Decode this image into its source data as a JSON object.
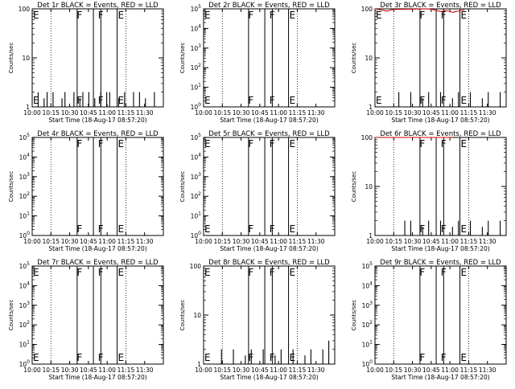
{
  "x_tick_labels": [
    "10:00",
    "10:15",
    "10:30",
    "10:45",
    "11:00",
    "11:15",
    "11:30"
  ],
  "xlabel": "Start Time (18-Aug-17 08:57:20)",
  "ylabel": "Counts/sec",
  "chart_data": [
    {
      "type": "line",
      "title": "Det 1r BLACK = Events, RED = LLD",
      "scale": "log",
      "ylim": [
        1,
        100
      ],
      "yticks": [
        "1",
        "10",
        "100"
      ],
      "annotations": [
        {
          "text": "E",
          "x": "10:00"
        },
        {
          "text": "F",
          "x": "10:35"
        },
        {
          "text": "F",
          "x": "10:52"
        },
        {
          "text": "E",
          "x": "11:08"
        }
      ],
      "series": [
        {
          "color": "#000000",
          "x": [
            10.05,
            10.1,
            10.15,
            10.2,
            10.25,
            10.3,
            10.35,
            10.4,
            10.45,
            10.5,
            10.55,
            10.6,
            10.65,
            10.7,
            10.75,
            10.8,
            10.85,
            10.9,
            10.95,
            11.0,
            11.05,
            11.1,
            11.15,
            11.2,
            11.25,
            11.3,
            11.35,
            11.4,
            11.45,
            11.5,
            11.55,
            11.6,
            11.65,
            11.7,
            11.75,
            11.8,
            11.85,
            11.9,
            11.95,
            12.0,
            12.05,
            12.1
          ],
          "y": [
            1,
            2,
            1,
            1.5,
            2,
            1,
            2,
            1,
            1,
            1.5,
            2,
            1,
            1,
            2,
            1,
            1.5,
            2,
            1,
            2,
            1,
            1.5,
            1,
            2,
            1,
            2,
            2,
            1,
            1,
            1.5,
            1,
            2,
            1,
            1,
            2,
            1,
            2,
            1,
            1.5,
            1,
            1,
            2,
            1
          ]
        }
      ]
    },
    {
      "type": "line",
      "title": "Det 2r BLACK = Events, RED = LLD",
      "scale": "log",
      "ylim": [
        1,
        100000
      ],
      "yticks": [
        "10^0",
        "10^1",
        "10^2",
        "10^3",
        "10^4",
        "10^5"
      ],
      "annotations": [
        {
          "text": "E",
          "x": "10:00"
        },
        {
          "text": "F",
          "x": "10:35"
        },
        {
          "text": "F",
          "x": "10:52"
        },
        {
          "text": "E",
          "x": "11:08"
        }
      ],
      "series": []
    },
    {
      "type": "line",
      "title": "Det 3r BLACK = Events, RED = LLD",
      "scale": "log",
      "ylim": [
        1,
        100
      ],
      "yticks": [
        "1",
        "10",
        "100"
      ],
      "annotations": [
        {
          "text": "E",
          "x": "10:00"
        },
        {
          "text": "F",
          "x": "10:35"
        },
        {
          "text": "F",
          "x": "10:52"
        },
        {
          "text": "E",
          "x": "11:08"
        }
      ],
      "series": [
        {
          "color": "#000000",
          "x": [
            10.3,
            10.4,
            10.5,
            10.6,
            10.7,
            10.8,
            10.9,
            11.0,
            11.1,
            11.2,
            11.3,
            11.4,
            11.5,
            11.6,
            11.7,
            11.8,
            11.9,
            12.0,
            12.1
          ],
          "y": [
            1,
            2,
            1,
            2,
            1,
            1.5,
            2,
            1,
            2,
            1,
            1.5,
            2,
            1,
            2,
            1,
            1.5,
            2,
            1,
            2
          ]
        },
        {
          "color": "#cc0000",
          "x": [
            10.0,
            10.1,
            10.2,
            10.3,
            10.9,
            11.0,
            11.1,
            11.2,
            11.3,
            11.4,
            11.5
          ],
          "y": [
            100,
            95,
            90,
            97,
            100,
            95,
            88,
            92,
            85,
            90,
            96
          ]
        }
      ]
    },
    {
      "type": "line",
      "title": "Det 4r BLACK = Events, RED = LLD",
      "scale": "log",
      "ylim": [
        1,
        100000
      ],
      "yticks": [
        "10^0",
        "10^1",
        "10^2",
        "10^3",
        "10^4",
        "10^5"
      ],
      "annotations": [
        {
          "text": "F",
          "x": "10:35"
        },
        {
          "text": "F",
          "x": "10:52"
        },
        {
          "text": "E",
          "x": "11:08"
        }
      ],
      "series": []
    },
    {
      "type": "line",
      "title": "Det 5r BLACK = Events, RED = LLD",
      "scale": "log",
      "ylim": [
        1,
        100000
      ],
      "yticks": [
        "10^0",
        "10^1",
        "10^2",
        "10^3",
        "10^4",
        "10^5"
      ],
      "annotations": [
        {
          "text": "E",
          "x": "10:00"
        },
        {
          "text": "F",
          "x": "10:35"
        },
        {
          "text": "F",
          "x": "10:52"
        },
        {
          "text": "E",
          "x": "11:08"
        }
      ],
      "series": []
    },
    {
      "type": "line",
      "title": "Det 6r BLACK = Events, RED = LLD",
      "scale": "log",
      "ylim": [
        1,
        100
      ],
      "yticks": [
        "1",
        "10",
        "100"
      ],
      "annotations": [
        {
          "text": "F",
          "x": "10:35"
        },
        {
          "text": "F",
          "x": "10:52"
        },
        {
          "text": "E",
          "x": "11:08"
        }
      ],
      "series": [
        {
          "color": "#000000",
          "x": [
            10.45,
            10.5,
            10.55,
            10.6,
            10.7,
            10.8,
            10.9,
            11.0,
            11.1,
            11.2,
            11.3,
            11.4,
            11.5,
            11.6,
            11.7,
            11.8,
            11.9,
            12.0,
            12.1
          ],
          "y": [
            1,
            2,
            1,
            2,
            1,
            1.5,
            2,
            1,
            2,
            1,
            1.5,
            2,
            1,
            2,
            1,
            1.5,
            2,
            1,
            2
          ]
        },
        {
          "color": "#cc0000",
          "x": [
            10.0,
            10.3,
            10.6,
            11.0,
            11.3
          ],
          "y": [
            100,
            100,
            100,
            100,
            100
          ]
        }
      ]
    },
    {
      "type": "line",
      "title": "Det 7r BLACK = Events, RED = LLD",
      "scale": "log",
      "ylim": [
        1,
        100000
      ],
      "yticks": [
        "10^0",
        "10^1",
        "10^2",
        "10^3",
        "10^4",
        "10^5"
      ],
      "annotations": [
        {
          "text": "E",
          "x": "10:00"
        },
        {
          "text": "F",
          "x": "10:35"
        },
        {
          "text": "F",
          "x": "10:52"
        },
        {
          "text": "E",
          "x": "11:08"
        }
      ],
      "series": []
    },
    {
      "type": "line",
      "title": "Det 8r BLACK = Events, RED = LLD",
      "scale": "log",
      "ylim": [
        1,
        100
      ],
      "yticks": [
        "1",
        "10",
        "100"
      ],
      "annotations": [
        {
          "text": "E",
          "x": "10:00"
        },
        {
          "text": "F",
          "x": "10:35"
        },
        {
          "text": "F",
          "x": "10:52"
        },
        {
          "text": "E",
          "x": "11:08"
        }
      ],
      "series": [
        {
          "color": "#000000",
          "x": [
            10.2,
            10.3,
            10.4,
            10.5,
            10.6,
            10.7,
            10.8,
            10.9,
            11.0,
            11.1,
            11.2,
            11.3,
            11.4,
            11.5,
            11.6,
            11.7,
            11.8,
            11.9,
            12.0,
            12.1
          ],
          "y": [
            1,
            2,
            1,
            2,
            1,
            1.5,
            2,
            1,
            2,
            1,
            1.5,
            2,
            1,
            2,
            1,
            1.5,
            2,
            1,
            2,
            3
          ]
        }
      ]
    },
    {
      "type": "line",
      "title": "Det 9r BLACK = Events, RED = LLD",
      "scale": "log",
      "ylim": [
        1,
        100000
      ],
      "yticks": [
        "10^0",
        "10^1",
        "10^2",
        "10^3",
        "10^4",
        "10^5"
      ],
      "annotations": [
        {
          "text": "F",
          "x": "10:35"
        },
        {
          "text": "F",
          "x": "10:52"
        },
        {
          "text": "E",
          "x": "11:08"
        }
      ],
      "series": []
    }
  ]
}
